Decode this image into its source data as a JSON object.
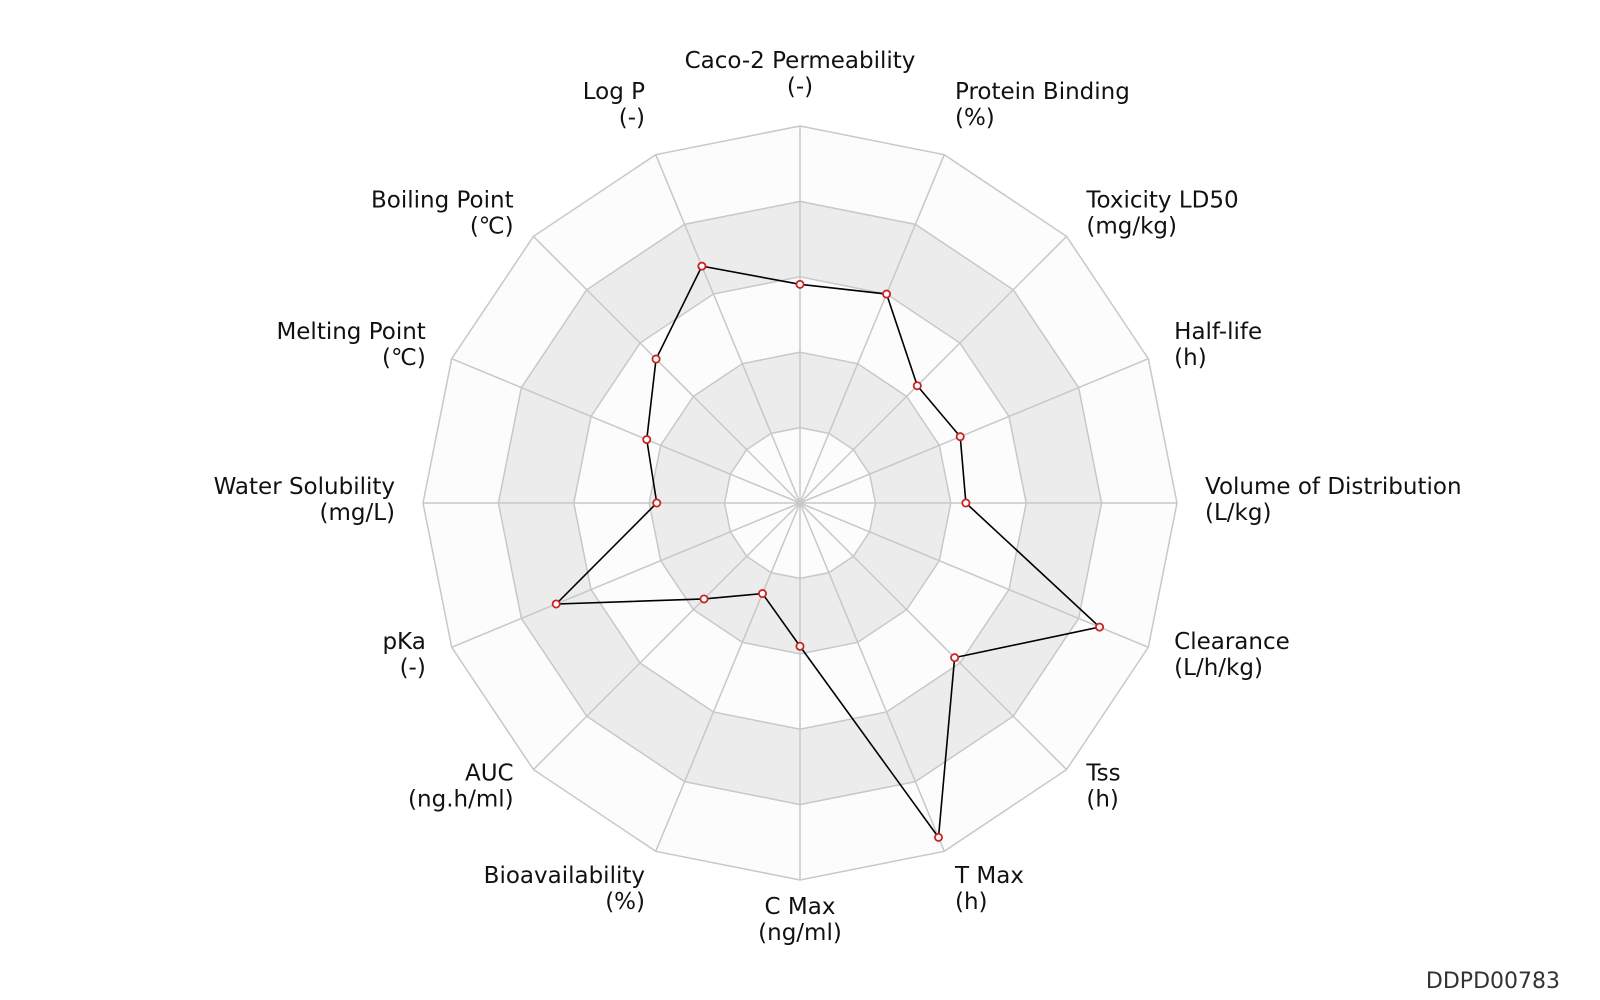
{
  "chart_data": {
    "type": "radar",
    "range": [
      0,
      5
    ],
    "rings": 5,
    "grid": true,
    "axes": [
      {
        "name": "Caco-2 Permeability",
        "unit": "(-)"
      },
      {
        "name": "Protein Binding",
        "unit": "(%)"
      },
      {
        "name": "Toxicity LD50",
        "unit": "(mg/kg)"
      },
      {
        "name": "Half-life",
        "unit": "(h)"
      },
      {
        "name": "Volume of Distribution",
        "unit": "(L/kg)"
      },
      {
        "name": "Clearance",
        "unit": "(L/h/kg)"
      },
      {
        "name": "Tss",
        "unit": "(h)"
      },
      {
        "name": "T Max",
        "unit": "(h)"
      },
      {
        "name": "C Max",
        "unit": "(ng/ml)"
      },
      {
        "name": "Bioavailability",
        "unit": "(%)"
      },
      {
        "name": "AUC",
        "unit": "(ng.h/ml)"
      },
      {
        "name": "pKa",
        "unit": "(-)"
      },
      {
        "name": "Water Solubility",
        "unit": "(mg/L)"
      },
      {
        "name": "Melting Point",
        "unit": "(℃)"
      },
      {
        "name": "Boiling Point",
        "unit": "(℃)"
      },
      {
        "name": "Log P",
        "unit": "(-)"
      }
    ],
    "series": [
      {
        "values": [
          2.9,
          3.0,
          2.2,
          2.3,
          2.2,
          4.3,
          2.9,
          4.8,
          1.9,
          1.3,
          1.8,
          3.5,
          1.9,
          2.2,
          2.7,
          3.4
        ],
        "line_color": "#000000",
        "marker_color": "#cc2222"
      }
    ]
  },
  "watermark": "DDPD00783"
}
